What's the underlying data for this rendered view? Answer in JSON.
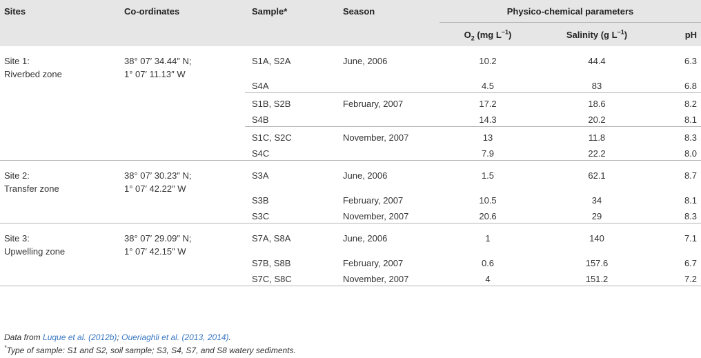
{
  "header": {
    "sites": "Sites",
    "coordinates": "Co-ordinates",
    "sample": "Sample*",
    "season": "Season",
    "physico": "Physico-chemical parameters",
    "o2_main": "O",
    "o2_sub": "2",
    "o2_unit": " (mg L",
    "o2_sup": "−1",
    "o2_close": ")",
    "sal_main": "Salinity (g L",
    "sal_sup": "−1",
    "sal_close": ")",
    "ph": "pH"
  },
  "sites": [
    {
      "name1": "Site 1:",
      "name2": "Riverbed zone",
      "coord1": "38° 07′ 34.44″ N;",
      "coord2": "1° 07′ 11.13″ W"
    },
    {
      "name1": "Site 2:",
      "name2": "Transfer zone",
      "coord1": "38° 07′ 30.23″ N;",
      "coord2": "1° 07′ 42.22″ W"
    },
    {
      "name1": "Site 3:",
      "name2": "Upwelling zone",
      "coord1": "38° 07′ 29.09″ N;",
      "coord2": "1° 07′ 42.15″ W"
    }
  ],
  "rows": [
    {
      "sample": "S1A, S2A",
      "season": "June, 2006",
      "o2": "10.2",
      "salinity": "44.4",
      "ph": "6.3"
    },
    {
      "sample": "S4A",
      "season": "",
      "o2": "4.5",
      "salinity": "83",
      "ph": "6.8"
    },
    {
      "sample": "S1B, S2B",
      "season": "February, 2007",
      "o2": "17.2",
      "salinity": "18.6",
      "ph": "8.2"
    },
    {
      "sample": "S4B",
      "season": "",
      "o2": "14.3",
      "salinity": "20.2",
      "ph": "8.1"
    },
    {
      "sample": "S1C, S2C",
      "season": "November, 2007",
      "o2": "13",
      "salinity": "11.8",
      "ph": "8.3"
    },
    {
      "sample": "S4C",
      "season": "",
      "o2": "7.9",
      "salinity": "22.2",
      "ph": "8.0"
    },
    {
      "sample": "S3A",
      "season": "June, 2006",
      "o2": "1.5",
      "salinity": "62.1",
      "ph": "8.7"
    },
    {
      "sample": "S3B",
      "season": "February, 2007",
      "o2": "10.5",
      "salinity": "34",
      "ph": "8.1"
    },
    {
      "sample": "S3C",
      "season": "November, 2007",
      "o2": "20.6",
      "salinity": "29",
      "ph": "8.3"
    },
    {
      "sample": "S7A, S8A",
      "season": "June, 2006",
      "o2": "1",
      "salinity": "140",
      "ph": "7.1"
    },
    {
      "sample": "S7B, S8B",
      "season": "February, 2007",
      "o2": "0.6",
      "salinity": "157.6",
      "ph": "6.7"
    },
    {
      "sample": "S7C, S8C",
      "season": "November, 2007",
      "o2": "4",
      "salinity": "151.2",
      "ph": "7.2"
    }
  ],
  "notes": {
    "data_from_prefix": "Data from ",
    "ref1": "Luque et al. (2012b)",
    "sep": "; ",
    "ref2": "Oueriaghli et al. (2013, 2014)",
    "end": ".",
    "star": "*",
    "type_note": "Type of sample: S1 and S2, soil sample; S3, S4, S7, and S8 watery sediments."
  },
  "colors": {
    "header_bg": "#e6e6e6",
    "rule": "#b5b5b5",
    "link": "#3a78c2",
    "text": "#333333"
  }
}
